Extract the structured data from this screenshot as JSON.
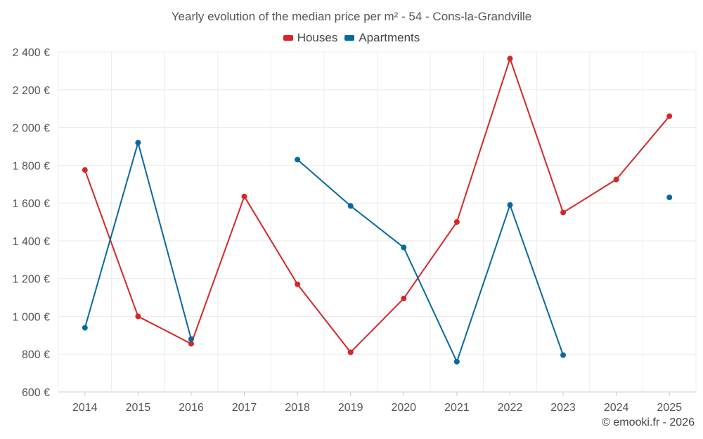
{
  "chart_data": {
    "type": "line",
    "title": "Yearly evolution of the median price per m² - 54 - Cons-la-Grandville",
    "categories": [
      "2014",
      "2015",
      "2016",
      "2017",
      "2018",
      "2019",
      "2020",
      "2021",
      "2022",
      "2023",
      "2024",
      "2025"
    ],
    "series": [
      {
        "name": "Houses",
        "color": "#d62728",
        "values": [
          1775,
          1000,
          855,
          1635,
          1170,
          810,
          1095,
          1500,
          2365,
          1550,
          1725,
          2060
        ]
      },
      {
        "name": "Apartments",
        "color": "#0868a0",
        "values": [
          940,
          1920,
          880,
          null,
          1830,
          1585,
          1365,
          760,
          1590,
          795,
          null,
          1630
        ]
      }
    ],
    "yticks": [
      600,
      800,
      1000,
      1200,
      1400,
      1600,
      1800,
      2000,
      2200,
      2400
    ],
    "ytick_labels": [
      "600 €",
      "800 €",
      "1 000 €",
      "1 200 €",
      "1 400 €",
      "1 600 €",
      "1 800 €",
      "2 000 €",
      "2 200 €",
      "2 400 €"
    ],
    "ylim": [
      600,
      2400
    ],
    "xlabel": "",
    "ylabel": "",
    "legend_position": "top-center",
    "grid": true
  },
  "credit": "© emooki.fr - 2026"
}
